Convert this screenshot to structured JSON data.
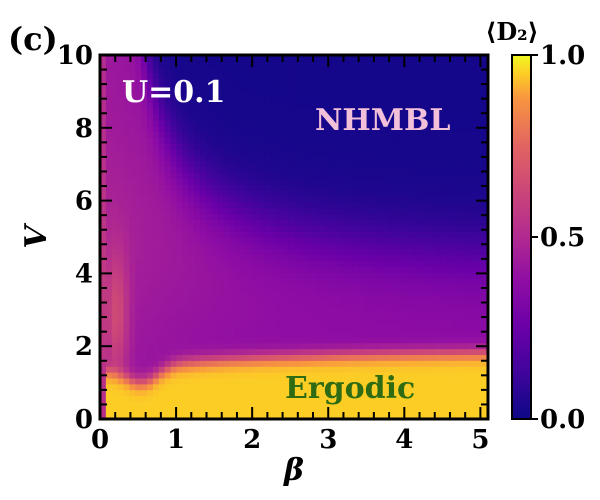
{
  "chart_data": {
    "type": "heatmap",
    "panel_label": "(c)",
    "xlabel": "β",
    "ylabel": "V",
    "xlim": [
      0,
      5.1
    ],
    "ylim": [
      0,
      10
    ],
    "x_ticks": [
      "0",
      "1",
      "2",
      "3",
      "4",
      "5"
    ],
    "y_ticks": [
      "0",
      "2",
      "4",
      "6",
      "8",
      "10"
    ],
    "annotations": {
      "param": "U=0.1",
      "phase_high": "NHMBL",
      "phase_low": "Ergodic"
    },
    "annotation_colors": {
      "param": "#ffffff",
      "phase_high": "#f2c0d8",
      "phase_low": "#2e6b12"
    },
    "colorbar": {
      "title": "⟨D₂⟩",
      "range": [
        0.0,
        1.0
      ],
      "tick_labels": [
        "0.0",
        "0.5",
        "1.0"
      ],
      "colormap": "plasma"
    },
    "description_of_regions": {
      "ergodic_D2": 0.95,
      "intermediate_D2": 0.35,
      "localized_D2": 0.02
    }
  }
}
